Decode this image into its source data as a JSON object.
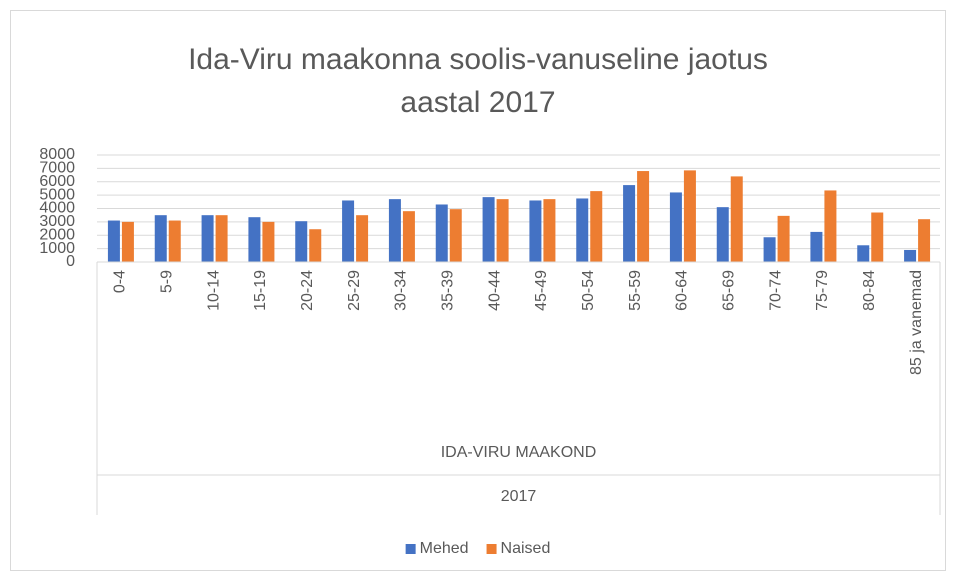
{
  "chart_data": {
    "type": "bar",
    "title": "Ida-Viru maakonna soolis-vanuseline jaotus aastal 2017",
    "categories": [
      "0-4",
      "5-9",
      "10-14",
      "15-19",
      "20-24",
      "25-29",
      "30-34",
      "35-39",
      "40-44",
      "45-49",
      "50-54",
      "55-59",
      "60-64",
      "65-69",
      "70-74",
      "75-79",
      "80-84",
      "85 ja vanemad"
    ],
    "group_labels": [
      "IDA-VIRU MAAKOND",
      "2017"
    ],
    "series": [
      {
        "name": "Mehed",
        "color": "#4472c4",
        "values": [
          3100,
          3500,
          3500,
          3350,
          3050,
          4600,
          4700,
          4300,
          4850,
          4600,
          4750,
          5750,
          5200,
          4100,
          1850,
          2250,
          1250,
          900
        ]
      },
      {
        "name": "Naised",
        "color": "#ed7d31",
        "values": [
          3000,
          3100,
          3500,
          3000,
          2450,
          3500,
          3800,
          3950,
          4700,
          4700,
          5300,
          6800,
          6850,
          6400,
          3450,
          5350,
          3700,
          3200
        ]
      }
    ],
    "ylim": [
      0,
      8000
    ],
    "yticks": [
      0,
      1000,
      2000,
      3000,
      4000,
      5000,
      6000,
      7000,
      8000
    ],
    "grid": true,
    "legend": "bottom"
  }
}
